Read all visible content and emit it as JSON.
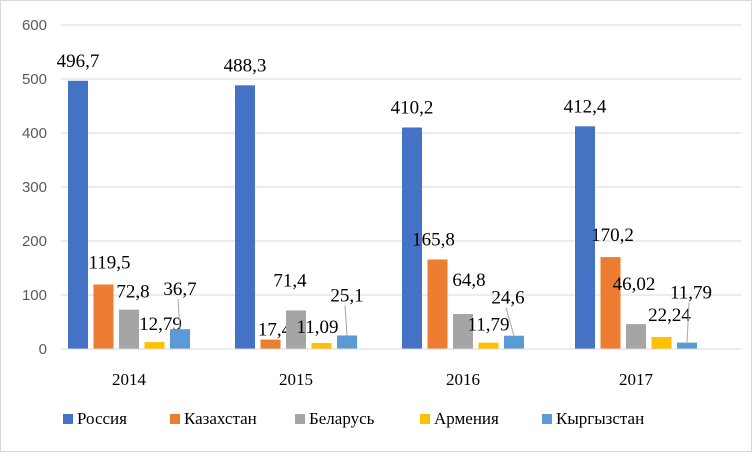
{
  "chart_data": {
    "type": "bar",
    "categories": [
      "2014",
      "2015",
      "2016",
      "2017"
    ],
    "series": [
      {
        "name": "Россия",
        "color": "#4472c4",
        "values": [
          496.7,
          488.3,
          410.2,
          412.4
        ],
        "labels": [
          "496,7",
          "488,3",
          "410,2",
          "412,4"
        ]
      },
      {
        "name": "Казахстан",
        "color": "#ed7d31",
        "values": [
          119.5,
          17.4,
          165.8,
          170.2
        ],
        "labels": [
          "119,5",
          "17,4",
          "165,8",
          "170,2"
        ]
      },
      {
        "name": "Беларусь",
        "color": "#a5a5a5",
        "values": [
          72.8,
          71.4,
          64.8,
          46.02
        ],
        "labels": [
          "72,8",
          "71,4",
          "64,8",
          "46,02"
        ]
      },
      {
        "name": "Армения",
        "color": "#ffc000",
        "values": [
          12.79,
          11.09,
          11.79,
          22.24
        ],
        "labels": [
          "12,79",
          "11,09",
          "11,79",
          "22,24"
        ]
      },
      {
        "name": "Кыргызстан",
        "color": "#5b9bd5",
        "values": [
          36.7,
          25.1,
          24.6,
          11.79
        ],
        "labels": [
          "36,7",
          "25,1",
          "24,6",
          "11,79"
        ]
      }
    ],
    "y_ticks": [
      "0",
      "100",
      "200",
      "300",
      "400",
      "500",
      "600"
    ],
    "ylim": [
      0,
      600
    ],
    "gridlines": true,
    "legend_position": "bottom",
    "title": "",
    "xlabel": "",
    "ylabel": ""
  }
}
